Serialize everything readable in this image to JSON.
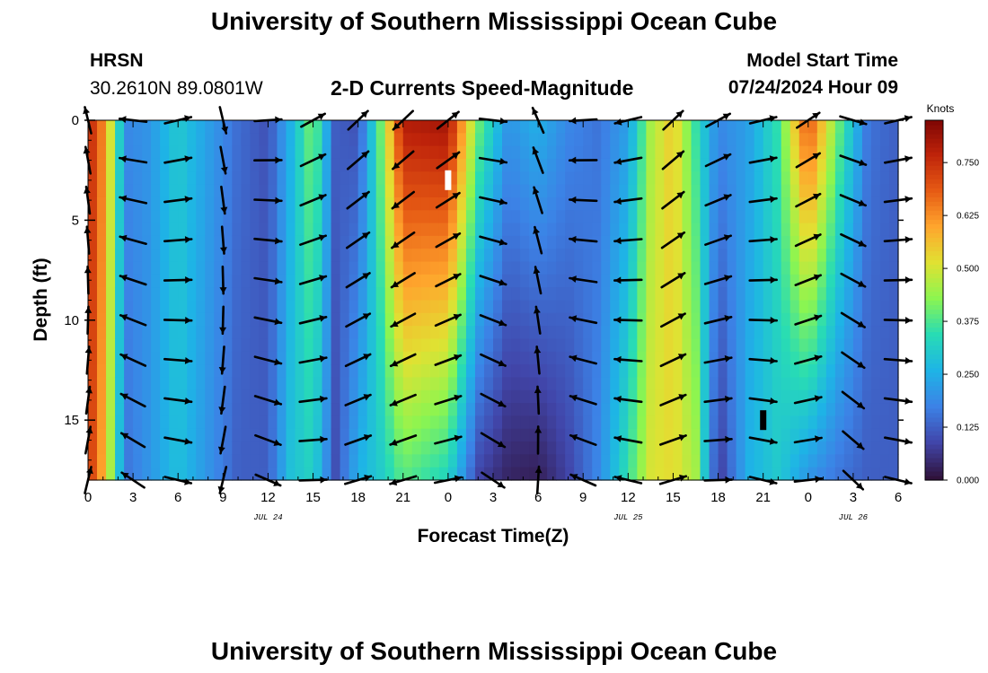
{
  "header": {
    "title": "University of Southern Mississippi Ocean Cube",
    "station": "HRSN",
    "coords": "30.2610N  89.0801W",
    "subtitle": "2-D Currents Speed-Magnitude",
    "model_start_label": "Model Start Time",
    "model_start_value": "07/24/2024 Hour 09"
  },
  "footer": {
    "title": "University of Southern Mississippi Ocean Cube"
  },
  "chart_data": {
    "type": "heatmap",
    "title": "2-D Currents Speed-Magnitude",
    "xlabel": "Forecast Time(Z)",
    "ylabel": "Depth (ft)",
    "x_tick_labels": [
      "0",
      "3",
      "6",
      "9",
      "12",
      "15",
      "18",
      "21",
      "0",
      "3",
      "6",
      "9",
      "12",
      "15",
      "18",
      "21",
      "0",
      "3",
      "6"
    ],
    "x_range_hours": [
      0,
      54
    ],
    "date_labels": [
      {
        "hour": 12,
        "label": "JUL 24"
      },
      {
        "hour": 36,
        "label": "JUL 25"
      },
      {
        "hour": 51,
        "label": "JUL 26"
      }
    ],
    "y_ticks": [
      0,
      5,
      10,
      15
    ],
    "y_range_ft": [
      0,
      18
    ],
    "y_inverted": true,
    "colorbar": {
      "unit": "Knots",
      "min": 0,
      "max": 0.85,
      "tick_labels": [
        "0.000",
        "0.125",
        "0.250",
        "0.375",
        "0.500",
        "0.625",
        "0.750"
      ],
      "tick_values": [
        0,
        0.125,
        0.25,
        0.375,
        0.5,
        0.625,
        0.75
      ]
    },
    "speed_profile_hours": [
      0,
      0.5,
      1.5,
      2.5,
      4,
      6,
      8,
      10,
      12,
      13.5,
      15,
      16.5,
      18,
      19.5,
      21,
      24,
      26,
      28,
      30,
      32,
      34,
      36,
      37.5,
      39,
      40.5,
      42,
      44,
      46,
      48,
      50,
      52,
      54
    ],
    "speed_profile_surface": [
      0.72,
      0.74,
      0.5,
      0.18,
      0.2,
      0.3,
      0.22,
      0.14,
      0.1,
      0.25,
      0.42,
      0.12,
      0.1,
      0.4,
      0.78,
      0.8,
      0.4,
      0.2,
      0.25,
      0.18,
      0.15,
      0.22,
      0.45,
      0.55,
      0.35,
      0.18,
      0.22,
      0.35,
      0.7,
      0.4,
      0.15,
      0.12
    ],
    "speed_profile_bottom": [
      0.7,
      0.7,
      0.45,
      0.15,
      0.2,
      0.28,
      0.2,
      0.12,
      0.12,
      0.28,
      0.32,
      0.1,
      0.25,
      0.3,
      0.38,
      0.32,
      0.08,
      0.03,
      0.02,
      0.08,
      0.18,
      0.35,
      0.5,
      0.52,
      0.45,
      0.06,
      0.25,
      0.3,
      0.2,
      0.15,
      0.12,
      0.12
    ],
    "vector_hours": [
      0,
      3,
      6,
      9,
      12,
      15,
      18,
      21,
      24,
      27,
      30,
      33,
      36,
      39,
      42,
      45,
      48,
      51,
      54
    ],
    "vector_depths_ft": [
      0,
      2,
      4,
      6,
      8,
      10,
      12,
      14,
      16,
      18
    ],
    "vector_direction_deg_by_hour": [
      0,
      290,
      90,
      180,
      100,
      75,
      60,
      240,
      65,
      110,
      350,
      280,
      270,
      60,
      75,
      90,
      70,
      120,
      90
    ],
    "markers": [
      {
        "hour": 24,
        "depth_ft": 3,
        "color": "white"
      },
      {
        "hour": 45,
        "depth_ft": 15,
        "color": "black"
      }
    ]
  }
}
